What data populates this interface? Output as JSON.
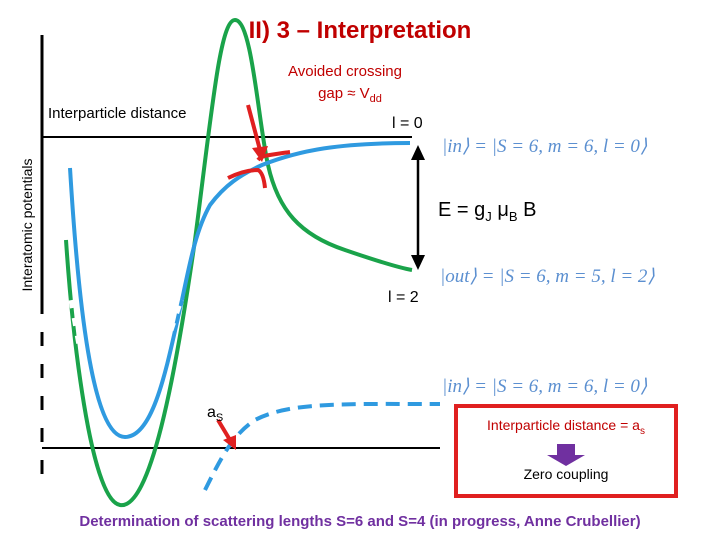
{
  "title": "II) 3 – Interpretation",
  "avoided_crossing": {
    "line1": "Avoided crossing",
    "line2": "gap ≈ V",
    "line2_sub": "dd"
  },
  "x_axis_label": "Interparticle distance",
  "y_axis_label": "Interatomic potentials",
  "l0_label": "l = 0",
  "l2_label": "l = 2",
  "energy_label": {
    "text1": "E = g",
    "sub1": "J",
    "text2": " μ",
    "sub2": "B",
    "text3": " B"
  },
  "kets": {
    "in_top": "|in⟩ = |S = 6, m = 6, l = 0⟩",
    "out": "|out⟩ = |S = 6, m = 5, l = 2⟩",
    "in_bottom": "|in⟩ = |S = 6, m = 6, l = 0⟩"
  },
  "as_label": {
    "text": "a",
    "sub": "S"
  },
  "box": {
    "text": "Interparticle distance = a",
    "sub": "s",
    "result": "Zero coupling"
  },
  "footer": "Determination of scattering lengths S=6 and S=4 (in progress, Anne Crubellier)"
}
